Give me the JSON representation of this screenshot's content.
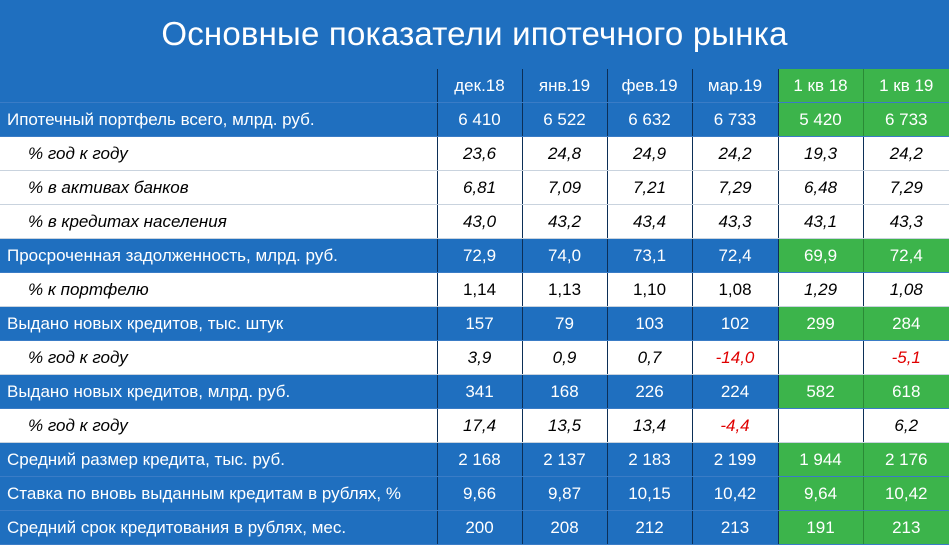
{
  "title": "Основные показатели ипотечного рынка",
  "columns": [
    "дек.18",
    "янв.19",
    "фев.19",
    "мар.19",
    "1 кв 18",
    "1 кв 19"
  ],
  "rows": [
    {
      "type": "main",
      "label": "Ипотечный портфель всего, млрд. руб.",
      "values": [
        "6 410",
        "6 522",
        "6 632",
        "6 733",
        "5 420",
        "6 733"
      ]
    },
    {
      "type": "sub",
      "label": "% год к году",
      "values": [
        "23,6",
        "24,8",
        "24,9",
        "24,2",
        "19,3",
        "24,2"
      ]
    },
    {
      "type": "sub",
      "label": "% в активах банков",
      "values": [
        "6,81",
        "7,09",
        "7,21",
        "7,29",
        "6,48",
        "7,29"
      ]
    },
    {
      "type": "sub",
      "label": "% в кредитах населения",
      "values": [
        "43,0",
        "43,2",
        "43,4",
        "43,3",
        "43,1",
        "43,3"
      ]
    },
    {
      "type": "main",
      "label": "Просроченная задолженность, млрд. руб.",
      "values": [
        "72,9",
        "74,0",
        "73,1",
        "72,4",
        "69,9",
        "72,4"
      ]
    },
    {
      "type": "sub",
      "label": "% к портфелю",
      "values": [
        "1,14",
        "1,13",
        "1,10",
        "1,08",
        "1,29",
        "1,08"
      ]
    },
    {
      "type": "main",
      "label": "Выдано новых кредитов, тыс. штук",
      "values": [
        "157",
        "79",
        "103",
        "102",
        "299",
        "284"
      ]
    },
    {
      "type": "sub",
      "label": "% год к году",
      "values": [
        "3,9",
        "0,9",
        "0,7",
        "-14,0",
        "",
        "-5,1"
      ]
    },
    {
      "type": "main",
      "label": "Выдано новых кредитов, млрд. руб.",
      "values": [
        "341",
        "168",
        "226",
        "224",
        "582",
        "618"
      ]
    },
    {
      "type": "sub",
      "label": "% год к году",
      "values": [
        "17,4",
        "13,5",
        "13,4",
        "-4,4",
        "",
        "6,2"
      ]
    },
    {
      "type": "main",
      "label": "Средний размер кредита, тыс. руб.",
      "values": [
        "2 168",
        "2 137",
        "2 183",
        "2 199",
        "1 944",
        "2 176"
      ]
    },
    {
      "type": "main",
      "label": "Ставка по вновь выданным кредитам в рублях, %",
      "values": [
        "9,66",
        "9,87",
        "10,15",
        "10,42",
        "9,64",
        "10,42"
      ]
    },
    {
      "type": "main",
      "label": "Средний срок кредитования в рублях, мес.",
      "values": [
        "200",
        "208",
        "212",
        "213",
        "191",
        "213"
      ]
    }
  ],
  "colors": {
    "header_blue": "#1f6fbf",
    "quarter_green": "#3cb44b",
    "negative_red": "#e00000",
    "sub_row_white": "#ffffff"
  }
}
